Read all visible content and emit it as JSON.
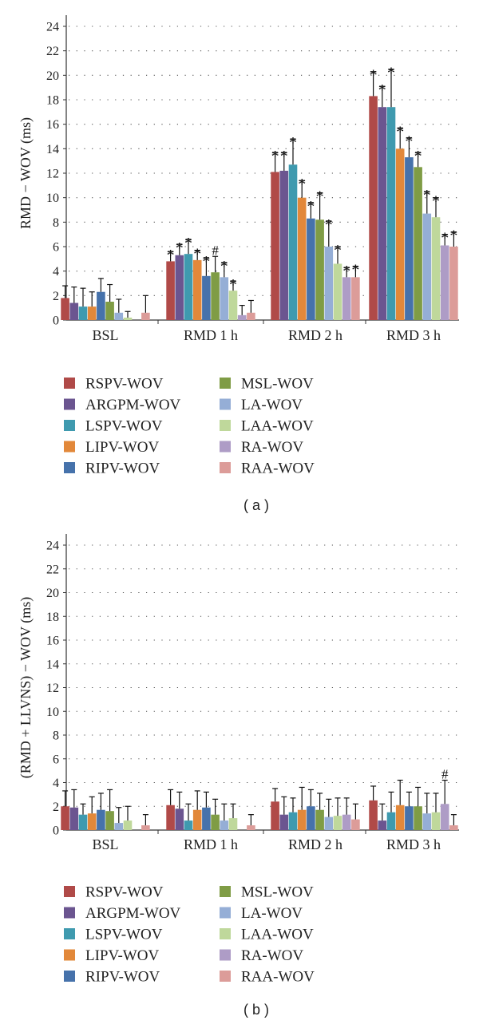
{
  "legend": [
    {
      "label": "RSPV-WOV",
      "color": "#b04a48"
    },
    {
      "label": "ARGPM-WOV",
      "color": "#6b5590"
    },
    {
      "label": "LSPV-WOV",
      "color": "#3f9aaf"
    },
    {
      "label": "LIPV-WOV",
      "color": "#e2883a"
    },
    {
      "label": "RIPV-WOV",
      "color": "#4672ab"
    },
    {
      "label": "MSL-WOV",
      "color": "#7f9c45"
    },
    {
      "label": "LA-WOV",
      "color": "#95aed6"
    },
    {
      "label": "LAA-WOV",
      "color": "#bfd89b"
    },
    {
      "label": "RA-WOV",
      "color": "#ae9cc6"
    },
    {
      "label": "RAA-WOV",
      "color": "#dc9c99"
    }
  ],
  "chart_data": [
    {
      "type": "bar",
      "caption": "( a )",
      "ylabel": "RMD − WOV (ms)",
      "xlabel": "",
      "ylim": [
        0,
        24
      ],
      "yticks": [
        0,
        2,
        4,
        6,
        8,
        10,
        12,
        14,
        16,
        18,
        20,
        22,
        24
      ],
      "grid": "dotted",
      "categories": [
        "BSL",
        "RMD 1 h",
        "RMD 2 h",
        "RMD 3 h"
      ],
      "series": [
        {
          "name": "RSPV-WOV",
          "values": [
            1.8,
            4.8,
            12.1,
            18.3
          ],
          "errors": [
            1.0,
            0.8,
            1.6,
            2.0
          ],
          "marks": [
            "",
            "*",
            "*",
            "*"
          ]
        },
        {
          "name": "ARGPM-WOV",
          "values": [
            1.4,
            5.3,
            12.2,
            17.4
          ],
          "errors": [
            1.3,
            0.9,
            1.5,
            1.7
          ],
          "marks": [
            "",
            "*",
            "*",
            "*"
          ]
        },
        {
          "name": "LSPV-WOV",
          "values": [
            1.1,
            5.4,
            12.7,
            17.4
          ],
          "errors": [
            1.5,
            1.2,
            2.1,
            3.1
          ],
          "marks": [
            "",
            "*",
            "*",
            "*"
          ]
        },
        {
          "name": "LIPV-WOV",
          "values": [
            1.1,
            4.9,
            10.0,
            14.0
          ],
          "errors": [
            1.2,
            0.8,
            1.4,
            1.7
          ],
          "marks": [
            "",
            "*",
            "*",
            "*"
          ]
        },
        {
          "name": "RIPV-WOV",
          "values": [
            2.3,
            3.6,
            8.3,
            13.3
          ],
          "errors": [
            1.1,
            1.5,
            1.3,
            1.6
          ],
          "marks": [
            "",
            "*",
            "*",
            "*"
          ]
        },
        {
          "name": "MSL-WOV",
          "values": [
            1.5,
            3.9,
            8.2,
            12.5
          ],
          "errors": [
            1.4,
            1.3,
            2.2,
            1.2
          ],
          "marks": [
            "",
            "#",
            "*",
            "*"
          ]
        },
        {
          "name": "LA-WOV",
          "values": [
            0.6,
            3.5,
            6.0,
            8.7
          ],
          "errors": [
            1.1,
            1.2,
            2.1,
            1.8
          ],
          "marks": [
            "",
            "*",
            "*",
            "*"
          ]
        },
        {
          "name": "LAA-WOV",
          "values": [
            0.2,
            2.4,
            4.6,
            8.4
          ],
          "errors": [
            0.5,
            0.8,
            1.4,
            1.6
          ],
          "marks": [
            "",
            "*",
            "*",
            "*"
          ]
        },
        {
          "name": "RA-WOV",
          "values": [
            0.0,
            0.4,
            3.5,
            6.1
          ],
          "errors": [
            0.0,
            0.8,
            0.8,
            0.9
          ],
          "marks": [
            "",
            "",
            "*",
            "*"
          ]
        },
        {
          "name": "RAA-WOV",
          "values": [
            0.6,
            0.6,
            3.5,
            6.0
          ],
          "errors": [
            1.4,
            1.0,
            0.9,
            1.2
          ],
          "marks": [
            "",
            "",
            "*",
            "*"
          ]
        }
      ]
    },
    {
      "type": "bar",
      "caption": "( b )",
      "ylabel": "(RMD + LLVNS) − WOV (ms)",
      "xlabel": "",
      "ylim": [
        0,
        24
      ],
      "yticks": [
        0,
        2,
        4,
        6,
        8,
        10,
        12,
        14,
        16,
        18,
        20,
        22,
        24
      ],
      "grid": "dotted",
      "categories": [
        "BSL",
        "RMD 1 h",
        "RMD 2 h",
        "RMD 3 h"
      ],
      "series": [
        {
          "name": "RSPV-WOV",
          "values": [
            2.0,
            2.1,
            2.4,
            2.5
          ],
          "errors": [
            1.3,
            1.3,
            1.1,
            1.2
          ],
          "marks": [
            "",
            "",
            "",
            ""
          ]
        },
        {
          "name": "ARGPM-WOV",
          "values": [
            1.9,
            1.8,
            1.3,
            0.8
          ],
          "errors": [
            1.5,
            1.4,
            1.5,
            1.4
          ],
          "marks": [
            "",
            "",
            "",
            ""
          ]
        },
        {
          "name": "LSPV-WOV",
          "values": [
            1.3,
            0.8,
            1.5,
            1.5
          ],
          "errors": [
            0.9,
            1.4,
            1.2,
            1.7
          ],
          "marks": [
            "",
            "",
            "",
            ""
          ]
        },
        {
          "name": "LIPV-WOV",
          "values": [
            1.4,
            1.7,
            1.7,
            2.1
          ],
          "errors": [
            1.4,
            1.6,
            1.9,
            2.1
          ],
          "marks": [
            "",
            "",
            "",
            ""
          ]
        },
        {
          "name": "RIPV-WOV",
          "values": [
            1.7,
            1.9,
            2.0,
            2.0
          ],
          "errors": [
            1.4,
            1.3,
            1.4,
            1.2
          ],
          "marks": [
            "",
            "",
            "",
            ""
          ]
        },
        {
          "name": "MSL-WOV",
          "values": [
            1.6,
            1.3,
            1.7,
            2.0
          ],
          "errors": [
            1.8,
            1.3,
            1.4,
            1.6
          ],
          "marks": [
            "",
            "",
            "",
            ""
          ]
        },
        {
          "name": "LA-WOV",
          "values": [
            0.6,
            0.8,
            1.1,
            1.4
          ],
          "errors": [
            1.3,
            1.4,
            1.5,
            1.7
          ],
          "marks": [
            "",
            "",
            "",
            ""
          ]
        },
        {
          "name": "LAA-WOV",
          "values": [
            0.8,
            1.0,
            1.2,
            1.5
          ],
          "errors": [
            1.2,
            1.2,
            1.5,
            1.6
          ],
          "marks": [
            "",
            "",
            "",
            ""
          ]
        },
        {
          "name": "RA-WOV",
          "values": [
            0.0,
            0.0,
            1.3,
            2.2
          ],
          "errors": [
            0.0,
            0.0,
            1.4,
            2.0
          ],
          "marks": [
            "",
            "",
            "",
            "#"
          ]
        },
        {
          "name": "RAA-WOV",
          "values": [
            0.4,
            0.4,
            0.9,
            0.4
          ],
          "errors": [
            0.9,
            0.9,
            1.3,
            0.9
          ],
          "marks": [
            "",
            "",
            "",
            ""
          ]
        }
      ]
    }
  ]
}
